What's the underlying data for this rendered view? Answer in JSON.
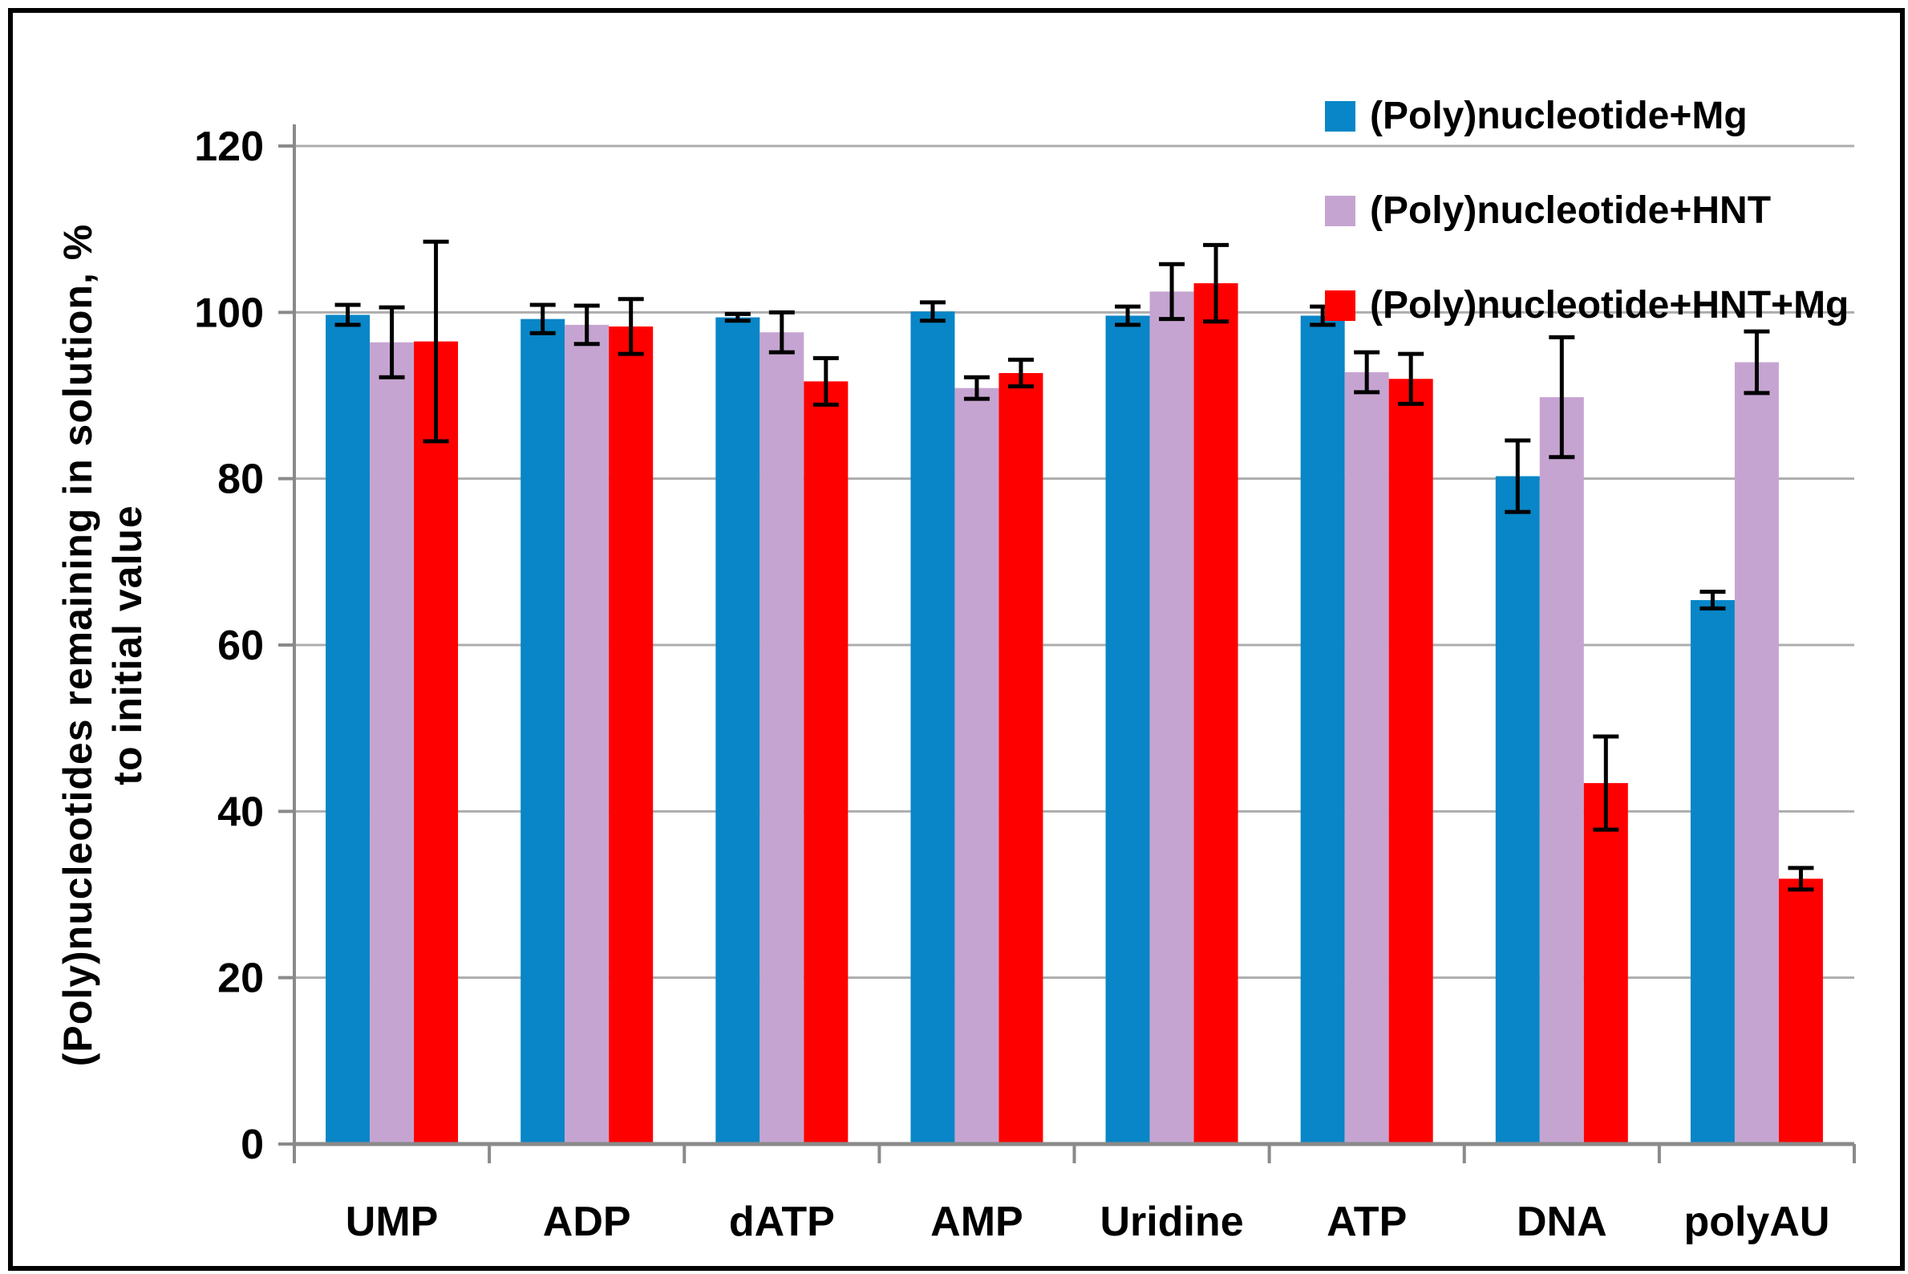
{
  "figure": {
    "background": "#ffffff",
    "border_color": "#000000",
    "gridline_color": "#ADADAD",
    "axis_color": "#8A8A8A",
    "error_bar_color": "#000000"
  },
  "legend": {
    "position": "top-right",
    "items": [
      {
        "label": "(Poly)nucleotide+Mg",
        "color": "#0886C7"
      },
      {
        "label": "(Poly)nucleotide+HNT",
        "color": "#C6A4D1"
      },
      {
        "label": "(Poly)nucleotide+HNT+Mg",
        "color": "#FF0000"
      }
    ]
  },
  "y_axis": {
    "title_lines": [
      "(Poly)nucleotides remaining in solution, %",
      "to initial value"
    ],
    "ticks": [
      0,
      20,
      40,
      60,
      80,
      100,
      120
    ]
  },
  "chart_data": {
    "type": "bar",
    "title": "",
    "xlabel": "",
    "ylabel": "(Poly)nucleotides remaining in solution, % to initial value",
    "ylim": [
      0,
      120
    ],
    "yticks": [
      0,
      20,
      40,
      60,
      80,
      100,
      120
    ],
    "grid": true,
    "error_bars": true,
    "legend_position": "top-right",
    "categories": [
      "UMP",
      "ADP",
      "dATP",
      "AMP",
      "Uridine",
      "ATP",
      "DNA",
      "polyAU"
    ],
    "series": [
      {
        "name": "(Poly)nucleotide+Mg",
        "color": "#0886C7",
        "values": [
          99.7,
          99.2,
          99.4,
          100.1,
          99.6,
          99.6,
          80.3,
          65.4
        ],
        "errors": [
          1.2,
          1.7,
          0.4,
          1.1,
          1.1,
          1.1,
          4.3,
          1.0
        ]
      },
      {
        "name": "(Poly)nucleotide+HNT",
        "color": "#C6A4D1",
        "values": [
          96.4,
          98.5,
          97.6,
          90.9,
          102.5,
          92.8,
          89.8,
          94.0
        ],
        "errors": [
          4.2,
          2.3,
          2.4,
          1.3,
          3.3,
          2.4,
          7.2,
          3.7
        ]
      },
      {
        "name": "(Poly)nucleotide+HNT+Mg",
        "color": "#FF0000",
        "values": [
          96.5,
          98.3,
          91.7,
          92.7,
          103.5,
          92.0,
          43.4,
          31.9
        ],
        "errors": [
          12.0,
          3.3,
          2.8,
          1.6,
          4.6,
          3.0,
          5.6,
          1.3
        ]
      }
    ]
  }
}
